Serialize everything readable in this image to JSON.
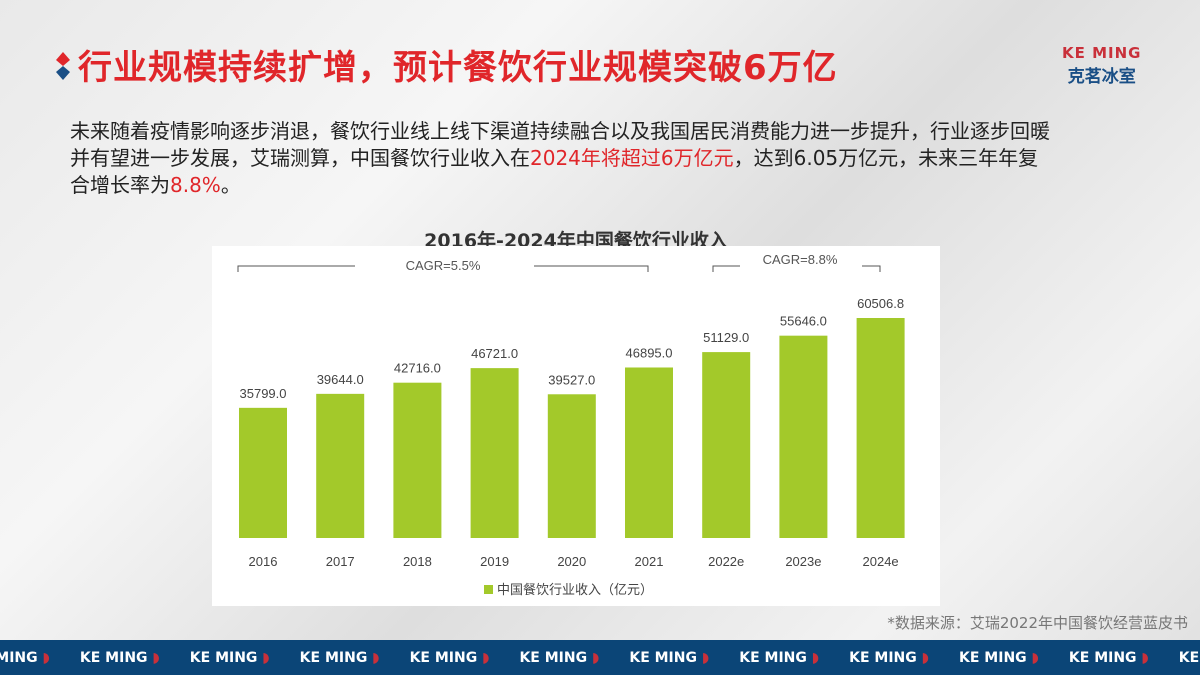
{
  "header": {
    "title": "行业规模持续扩增，预计餐饮行业规模突破6万亿",
    "logo_en": "KE MING",
    "logo_cn": "克茗冰室"
  },
  "body": {
    "p1": "未来随着疫情影响逐步消退，餐饮行业线上线下渠道持续融合以及我国居民消费能力进一步提升，行业逐步回暖并有望进一步发展，艾瑞测算，中国餐饮行业收入在",
    "p_red1": "2024年将超过6万亿元",
    "p2": "，达到6.05万亿元，未来三年年复合增长率为",
    "p_red2": "8.8%",
    "p3": "。"
  },
  "chart_data": {
    "type": "bar",
    "title": "2016年-2024年中国餐饮行业收入",
    "categories": [
      "2016",
      "2017",
      "2018",
      "2019",
      "2020",
      "2021",
      "2022e",
      "2023e",
      "2024e"
    ],
    "series": [
      {
        "name": "中国餐饮行业收入（亿元）",
        "values": [
          35799.0,
          39644.0,
          42716.0,
          46721.0,
          39527.0,
          46895.0,
          51129.0,
          55646.0,
          60506.8
        ]
      }
    ],
    "annotations": [
      "CAGR=5.5%",
      "CAGR=8.8%"
    ],
    "legend": "bottom",
    "color": "#a3c92a",
    "grid": false
  },
  "source": "*数据来源：艾瑞2022年中国餐饮经营蓝皮书",
  "footer": {
    "brand": "KE MING"
  }
}
